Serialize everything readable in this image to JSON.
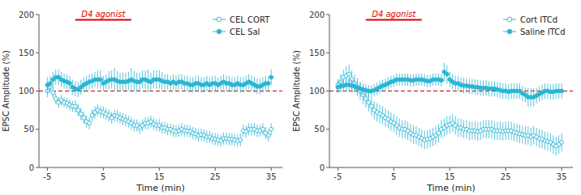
{
  "chart_data": [
    {
      "type": "scatter",
      "xlabel": "Time (min)",
      "ylabel": "EPSC Amplitude (%)",
      "xlim": [
        -6.5,
        37
      ],
      "xticks": [
        -5,
        5,
        15,
        25,
        35
      ],
      "ylim": [
        0,
        200
      ],
      "yticks": [
        0,
        50,
        100,
        150,
        200
      ],
      "grid": false,
      "legend": "upper right",
      "reference_line": {
        "y": 100,
        "color": "#cc0000",
        "line_style": "dashed"
      },
      "annotations": [
        {
          "text": "D4 agonist",
          "color": "#dd0000",
          "x_start": 0,
          "x_end": 10,
          "y": 193
        }
      ],
      "x": [
        -5,
        -4.5,
        -4,
        -3.5,
        -3,
        -2.5,
        -2,
        -1.5,
        -1,
        -0.5,
        0,
        0.5,
        1,
        1.5,
        2,
        2.5,
        3,
        3.5,
        4,
        4.5,
        5,
        5.5,
        6,
        6.5,
        7,
        7.5,
        8,
        8.5,
        9,
        9.5,
        10,
        10.5,
        11,
        11.5,
        12,
        12.5,
        13,
        13.5,
        14,
        14.5,
        15,
        15.5,
        16,
        16.5,
        17,
        17.5,
        18,
        18.5,
        19,
        19.5,
        20,
        20.5,
        21,
        21.5,
        22,
        22.5,
        23,
        23.5,
        24,
        24.5,
        25,
        25.5,
        26,
        26.5,
        27,
        27.5,
        28,
        28.5,
        29,
        29.5,
        30,
        30.5,
        31,
        31.5,
        32,
        32.5,
        33,
        33.5,
        34,
        34.5,
        35
      ],
      "series": [
        {
          "name": "CEL CORT",
          "color": "#29b6d4",
          "marker": "open-circle",
          "values": [
            100,
            105,
            98,
            90,
            85,
            88,
            85,
            84,
            82,
            80,
            80,
            75,
            70,
            65,
            60,
            58,
            68,
            72,
            75,
            73,
            72,
            70,
            68,
            65,
            68,
            67,
            65,
            63,
            62,
            60,
            58,
            55,
            55,
            52,
            55,
            58,
            58,
            60,
            57,
            55,
            55,
            52,
            52,
            50,
            50,
            48,
            47,
            48,
            50,
            48,
            48,
            47,
            45,
            44,
            42,
            43,
            42,
            40,
            40,
            38,
            37,
            36,
            35,
            38,
            38,
            37,
            37,
            36,
            35,
            36,
            48,
            47,
            50,
            50,
            50,
            48,
            48,
            50,
            45,
            42,
            50
          ],
          "errors": [
            8,
            7,
            7,
            7,
            7,
            7,
            7,
            7,
            7,
            7,
            8,
            8,
            8,
            8,
            8,
            8,
            8,
            8,
            8,
            8,
            8,
            8,
            8,
            8,
            8,
            8,
            8,
            8,
            8,
            8,
            8,
            8,
            8,
            8,
            8,
            8,
            8,
            8,
            8,
            8,
            8,
            8,
            8,
            8,
            8,
            8,
            8,
            8,
            8,
            8,
            8,
            8,
            8,
            8,
            8,
            8,
            8,
            8,
            8,
            8,
            8,
            8,
            8,
            8,
            8,
            8,
            8,
            8,
            8,
            8,
            8,
            8,
            8,
            8,
            8,
            8,
            8,
            8,
            8,
            8,
            8
          ]
        },
        {
          "name": "CEL Sal",
          "color": "#29b6d4",
          "marker": "filled-circle",
          "values": [
            108,
            110,
            115,
            118,
            118,
            115,
            113,
            112,
            110,
            105,
            103,
            102,
            105,
            108,
            110,
            112,
            113,
            115,
            115,
            115,
            110,
            112,
            114,
            115,
            115,
            113,
            112,
            112,
            112,
            113,
            115,
            113,
            112,
            112,
            115,
            115,
            113,
            112,
            115,
            115,
            115,
            113,
            112,
            112,
            110,
            112,
            110,
            112,
            112,
            110,
            110,
            108,
            108,
            110,
            110,
            108,
            108,
            110,
            108,
            110,
            110,
            108,
            110,
            112,
            110,
            110,
            108,
            108,
            110,
            108,
            108,
            110,
            112,
            110,
            108,
            106,
            106,
            108,
            110,
            110,
            118
          ],
          "errors": [
            10,
            10,
            10,
            10,
            10,
            10,
            10,
            10,
            10,
            10,
            10,
            10,
            10,
            10,
            10,
            10,
            10,
            10,
            12,
            12,
            10,
            10,
            12,
            12,
            15,
            13,
            12,
            12,
            12,
            12,
            15,
            13,
            12,
            12,
            12,
            12,
            15,
            12,
            12,
            12,
            12,
            12,
            10,
            10,
            10,
            10,
            10,
            10,
            10,
            10,
            10,
            10,
            10,
            10,
            10,
            10,
            10,
            10,
            10,
            10,
            10,
            10,
            10,
            10,
            10,
            10,
            10,
            10,
            10,
            10,
            10,
            10,
            10,
            10,
            10,
            10,
            10,
            10,
            10,
            10,
            10
          ]
        }
      ]
    },
    {
      "type": "scatter",
      "xlabel": "Time (min)",
      "ylabel": "EPSC Amplitude (%)",
      "xlim": [
        -6.5,
        37
      ],
      "xticks": [
        -5,
        5,
        15,
        25,
        35
      ],
      "ylim": [
        0,
        200
      ],
      "yticks": [
        0,
        50,
        100,
        150,
        200
      ],
      "grid": false,
      "legend": "upper right",
      "reference_line": {
        "y": 100,
        "color": "#cc0000",
        "line_style": "dashed"
      },
      "annotations": [
        {
          "text": "D4 agonist",
          "color": "#dd0000",
          "x_start": 0,
          "x_end": 10,
          "y": 193
        }
      ],
      "x": [
        -5,
        -4.5,
        -4,
        -3.5,
        -3,
        -2.5,
        -2,
        -1.5,
        -1,
        -0.5,
        0,
        0.5,
        1,
        1.5,
        2,
        2.5,
        3,
        3.5,
        4,
        4.5,
        5,
        5.5,
        6,
        6.5,
        7,
        7.5,
        8,
        8.5,
        9,
        9.5,
        10,
        10.5,
        11,
        11.5,
        12,
        12.5,
        13,
        13.5,
        14,
        14.5,
        15,
        15.5,
        16,
        16.5,
        17,
        17.5,
        18,
        18.5,
        19,
        19.5,
        20,
        20.5,
        21,
        21.5,
        22,
        22.5,
        23,
        23.5,
        24,
        24.5,
        25,
        25.5,
        26,
        26.5,
        27,
        27.5,
        28,
        28.5,
        29,
        29.5,
        30,
        30.5,
        31,
        31.5,
        32,
        32.5,
        33,
        33.5,
        34,
        34.5,
        35
      ],
      "series": [
        {
          "name": "Cort ITCd",
          "color": "#29b6d4",
          "marker": "open-circle",
          "values": [
            108,
            112,
            118,
            120,
            122,
            115,
            110,
            105,
            100,
            95,
            90,
            85,
            80,
            75,
            72,
            70,
            68,
            65,
            63,
            60,
            58,
            55,
            52,
            50,
            50,
            48,
            45,
            43,
            42,
            40,
            38,
            36,
            37,
            38,
            40,
            42,
            45,
            50,
            52,
            55,
            56,
            58,
            55,
            52,
            52,
            50,
            50,
            48,
            48,
            48,
            47,
            48,
            50,
            50,
            50,
            50,
            48,
            48,
            48,
            47,
            48,
            48,
            48,
            46,
            45,
            44,
            43,
            42,
            42,
            40,
            42,
            40,
            38,
            37,
            35,
            34,
            33,
            30,
            28,
            30,
            33
          ],
          "errors": [
            8,
            10,
            10,
            12,
            12,
            12,
            12,
            12,
            12,
            12,
            12,
            12,
            12,
            12,
            12,
            12,
            12,
            12,
            12,
            12,
            12,
            12,
            12,
            12,
            12,
            12,
            12,
            12,
            12,
            12,
            12,
            12,
            12,
            12,
            12,
            12,
            12,
            12,
            12,
            12,
            12,
            12,
            12,
            12,
            12,
            12,
            12,
            12,
            12,
            12,
            12,
            12,
            12,
            12,
            12,
            12,
            12,
            12,
            12,
            12,
            12,
            12,
            12,
            12,
            12,
            12,
            12,
            12,
            12,
            12,
            12,
            12,
            12,
            12,
            12,
            12,
            12,
            12,
            12,
            12,
            12
          ]
        },
        {
          "name": "Saline ITCd",
          "color": "#29b6d4",
          "marker": "filled-circle",
          "values": [
            105,
            106,
            107,
            108,
            108,
            107,
            106,
            104,
            103,
            102,
            101,
            100,
            100,
            101,
            103,
            105,
            107,
            108,
            110,
            112,
            113,
            115,
            115,
            115,
            115,
            115,
            114,
            114,
            115,
            115,
            115,
            114,
            113,
            113,
            115,
            115,
            115,
            114,
            125,
            122,
            115,
            112,
            110,
            110,
            108,
            107,
            107,
            106,
            106,
            105,
            105,
            104,
            104,
            104,
            103,
            103,
            103,
            102,
            101,
            100,
            100,
            99,
            100,
            100,
            100,
            100,
            97,
            95,
            92,
            92,
            92,
            94,
            96,
            98,
            100,
            100,
            99,
            99,
            100,
            100,
            100
          ],
          "errors": [
            8,
            8,
            8,
            8,
            8,
            8,
            8,
            8,
            8,
            8,
            8,
            8,
            8,
            8,
            8,
            8,
            8,
            8,
            8,
            8,
            8,
            8,
            8,
            8,
            8,
            8,
            8,
            8,
            8,
            8,
            8,
            8,
            8,
            8,
            8,
            8,
            8,
            8,
            12,
            12,
            10,
            10,
            10,
            10,
            10,
            10,
            10,
            10,
            10,
            10,
            10,
            10,
            10,
            10,
            10,
            10,
            10,
            10,
            10,
            10,
            10,
            10,
            10,
            10,
            10,
            10,
            10,
            10,
            12,
            12,
            12,
            10,
            10,
            10,
            10,
            10,
            10,
            10,
            10,
            10,
            10
          ]
        }
      ]
    }
  ]
}
